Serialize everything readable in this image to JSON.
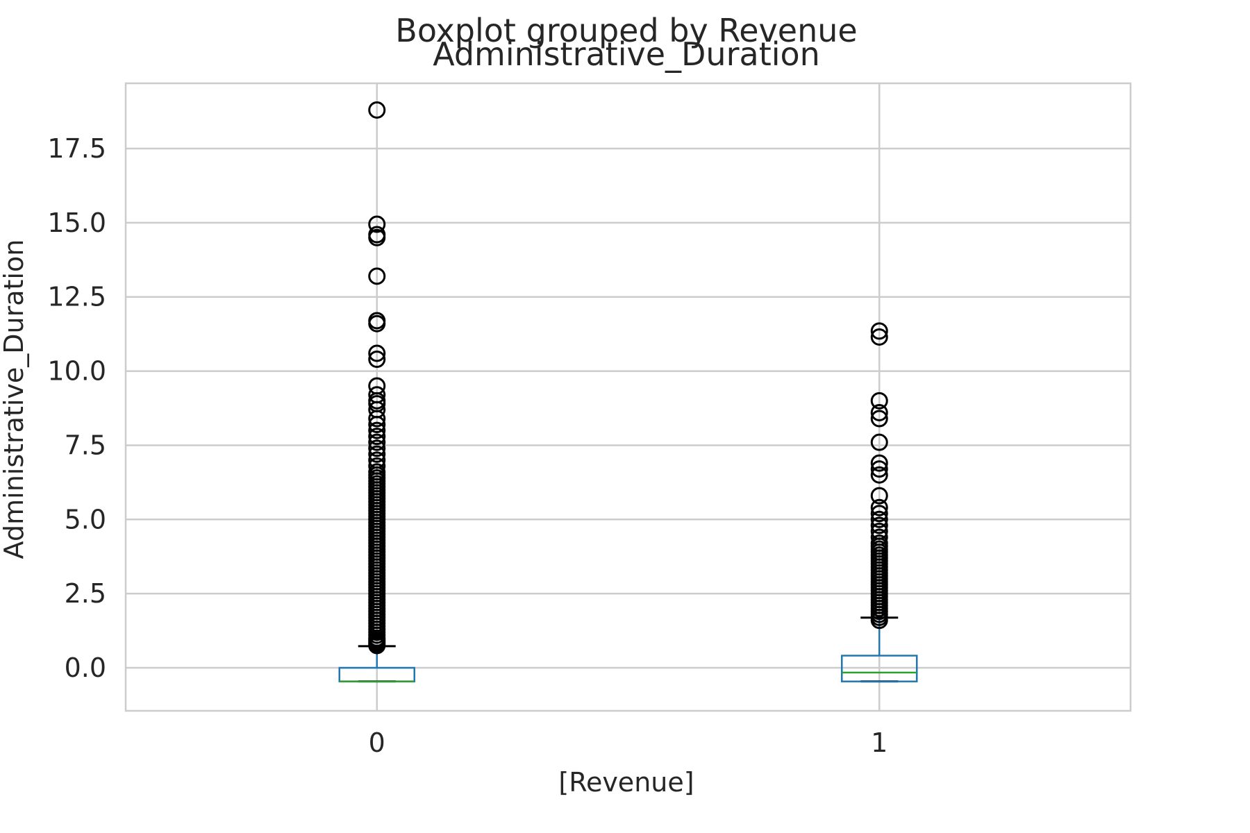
{
  "chart_data": {
    "type": "box",
    "suptitle": "Boxplot grouped by Revenue",
    "title": "Administrative_Duration",
    "xlabel": "[Revenue]",
    "ylabel": "Administrative_Duration",
    "categories": [
      "0",
      "1"
    ],
    "ylim": [
      -1.45,
      19.7
    ],
    "yticks": [
      0.0,
      2.5,
      5.0,
      7.5,
      10.0,
      12.5,
      15.0,
      17.5
    ],
    "ytick_labels": [
      "0.0",
      "2.5",
      "5.0",
      "7.5",
      "10.0",
      "12.5",
      "15.0",
      "17.5"
    ],
    "grid": true,
    "colors": {
      "box": "#1f77b4",
      "median": "#2ca02c",
      "whisker_cap": "#000000",
      "flier": "#000000",
      "grid": "#cccccc"
    },
    "boxes": [
      {
        "category": "0",
        "whislo": -0.46,
        "q1": -0.46,
        "med": -0.46,
        "q3": 0.0,
        "whishi": 0.73,
        "fliers": [
          0.75,
          0.8,
          0.85,
          0.9,
          0.95,
          1.0,
          1.1,
          1.2,
          1.3,
          1.4,
          1.5,
          1.6,
          1.7,
          1.8,
          1.9,
          2.0,
          2.1,
          2.2,
          2.3,
          2.4,
          2.5,
          2.6,
          2.7,
          2.8,
          2.9,
          3.0,
          3.1,
          3.2,
          3.3,
          3.4,
          3.5,
          3.6,
          3.7,
          3.8,
          3.9,
          4.0,
          4.1,
          4.2,
          4.3,
          4.4,
          4.5,
          4.6,
          4.7,
          4.8,
          4.9,
          5.0,
          5.1,
          5.2,
          5.3,
          5.4,
          5.5,
          5.6,
          5.7,
          5.8,
          5.9,
          6.0,
          6.1,
          6.2,
          6.3,
          6.4,
          6.5,
          6.6,
          6.8,
          7.0,
          7.2,
          7.4,
          7.6,
          7.8,
          8.0,
          8.2,
          8.4,
          8.7,
          8.9,
          9.0,
          9.2,
          9.5,
          10.4,
          10.6,
          11.6,
          11.7,
          13.2,
          14.5,
          14.6,
          14.95,
          18.8
        ]
      },
      {
        "category": "1",
        "whislo": -0.46,
        "q1": -0.46,
        "med": -0.16,
        "q3": 0.41,
        "whishi": 1.69,
        "fliers": [
          1.6,
          1.7,
          1.8,
          1.9,
          2.0,
          2.1,
          2.2,
          2.3,
          2.4,
          2.5,
          2.6,
          2.7,
          2.8,
          2.9,
          3.0,
          3.1,
          3.2,
          3.3,
          3.4,
          3.5,
          3.6,
          3.7,
          3.8,
          3.9,
          4.0,
          4.1,
          4.2,
          4.4,
          4.6,
          4.8,
          5.0,
          5.2,
          5.4,
          5.8,
          6.5,
          6.7,
          6.9,
          7.6,
          8.4,
          8.6,
          9.0,
          11.15,
          11.35
        ]
      }
    ]
  }
}
